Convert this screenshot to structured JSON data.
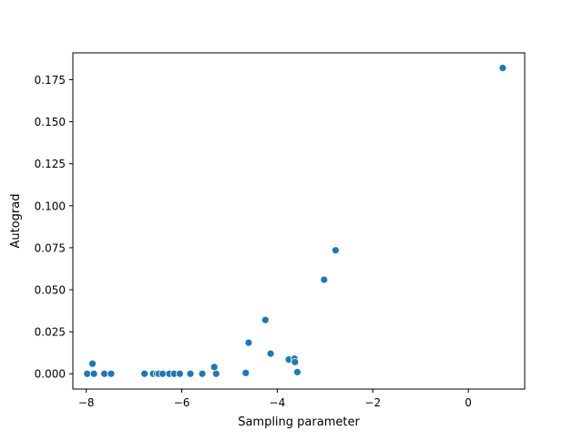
{
  "chart_data": {
    "type": "scatter",
    "title": "",
    "xlabel": "Sampling parameter",
    "ylabel": "Autograd",
    "xlim": [
      -8.28,
      1.18
    ],
    "ylim": [
      -0.0091,
      0.191
    ],
    "xticks": [
      -8,
      -6,
      -4,
      -2,
      0
    ],
    "xtick_labels": [
      "−8",
      "−6",
      "−4",
      "−2",
      "0"
    ],
    "yticks": [
      0.0,
      0.025,
      0.05,
      0.075,
      0.1,
      0.125,
      0.15,
      0.175
    ],
    "ytick_labels": [
      "0.000",
      "0.025",
      "0.050",
      "0.075",
      "0.100",
      "0.125",
      "0.150",
      "0.175"
    ],
    "grid": false,
    "marker_color": "#1f77b4",
    "points": [
      {
        "x": -7.98,
        "y": 0.0
      },
      {
        "x": -7.87,
        "y": 0.006
      },
      {
        "x": -7.84,
        "y": 0.0
      },
      {
        "x": -7.62,
        "y": 0.0
      },
      {
        "x": -7.48,
        "y": 0.0
      },
      {
        "x": -6.78,
        "y": 0.0
      },
      {
        "x": -6.6,
        "y": 0.0
      },
      {
        "x": -6.52,
        "y": 0.0
      },
      {
        "x": -6.48,
        "y": 0.0
      },
      {
        "x": -6.4,
        "y": 0.0
      },
      {
        "x": -6.26,
        "y": 0.0
      },
      {
        "x": -6.16,
        "y": 0.0
      },
      {
        "x": -6.04,
        "y": 0.0
      },
      {
        "x": -5.82,
        "y": 0.0
      },
      {
        "x": -5.57,
        "y": 0.0
      },
      {
        "x": -5.32,
        "y": 0.004
      },
      {
        "x": -5.28,
        "y": 0.0
      },
      {
        "x": -4.66,
        "y": 0.0005
      },
      {
        "x": -4.6,
        "y": 0.0185
      },
      {
        "x": -4.25,
        "y": 0.032
      },
      {
        "x": -4.14,
        "y": 0.012
      },
      {
        "x": -3.76,
        "y": 0.0085
      },
      {
        "x": -3.64,
        "y": 0.009
      },
      {
        "x": -3.63,
        "y": 0.007
      },
      {
        "x": -3.58,
        "y": 0.001
      },
      {
        "x": -3.02,
        "y": 0.056
      },
      {
        "x": -2.78,
        "y": 0.0735
      },
      {
        "x": 0.72,
        "y": 0.182
      }
    ]
  }
}
